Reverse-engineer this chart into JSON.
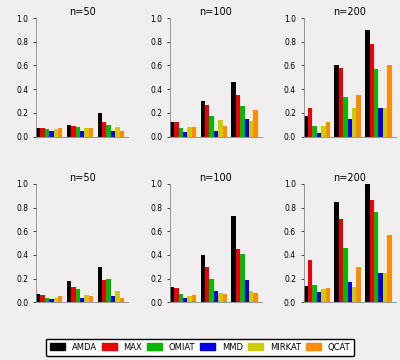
{
  "colors": {
    "AMDA": "#000000",
    "MAX": "#EE0000",
    "OMIAT": "#00BB00",
    "MMD": "#0000EE",
    "MIRKAT": "#CCCC00",
    "QCAT": "#FF8C00"
  },
  "bg_color": "#F0EEEE",
  "titles_row1": [
    "n=50",
    "n=100",
    "n=200"
  ],
  "titles_row2": [
    "n=50",
    "n=100",
    "n=200"
  ],
  "ylim": [
    0,
    1.0
  ],
  "yticks": [
    0.0,
    0.2,
    0.4,
    0.6,
    0.8,
    1.0
  ],
  "legend_labels": [
    "AMDA",
    "MAX",
    "OMIAT",
    "MMD",
    "MIRKAT",
    "QCAT"
  ],
  "row1": [
    {
      "groups": [
        [
          0.07,
          0.07,
          0.06,
          0.05,
          0.06,
          0.07
        ],
        [
          0.1,
          0.09,
          0.08,
          0.05,
          0.07,
          0.07
        ],
        [
          0.2,
          0.12,
          0.1,
          0.05,
          0.08,
          0.05
        ]
      ]
    },
    {
      "groups": [
        [
          0.12,
          0.12,
          0.07,
          0.04,
          0.08,
          0.08
        ],
        [
          0.3,
          0.27,
          0.17,
          0.05,
          0.14,
          0.09
        ],
        [
          0.46,
          0.35,
          0.26,
          0.15,
          0.13,
          0.22
        ]
      ]
    },
    {
      "groups": [
        [
          0.17,
          0.24,
          0.09,
          0.03,
          0.09,
          0.12
        ],
        [
          0.6,
          0.58,
          0.33,
          0.15,
          0.24,
          0.35
        ],
        [
          0.9,
          0.78,
          0.57,
          0.24,
          0.24,
          0.6
        ]
      ]
    }
  ],
  "row2": [
    {
      "groups": [
        [
          0.07,
          0.06,
          0.04,
          0.03,
          0.04,
          0.05
        ],
        [
          0.18,
          0.13,
          0.11,
          0.04,
          0.06,
          0.05
        ],
        [
          0.3,
          0.19,
          0.2,
          0.05,
          0.1,
          0.04
        ]
      ]
    },
    {
      "groups": [
        [
          0.13,
          0.12,
          0.07,
          0.04,
          0.05,
          0.06
        ],
        [
          0.4,
          0.3,
          0.2,
          0.1,
          0.08,
          0.07
        ],
        [
          0.73,
          0.45,
          0.41,
          0.19,
          0.1,
          0.08
        ]
      ]
    },
    {
      "groups": [
        [
          0.14,
          0.36,
          0.15,
          0.09,
          0.11,
          0.12
        ],
        [
          0.85,
          0.7,
          0.46,
          0.17,
          0.13,
          0.3
        ],
        [
          1.0,
          0.86,
          0.76,
          0.25,
          0.25,
          0.57
        ]
      ]
    }
  ]
}
